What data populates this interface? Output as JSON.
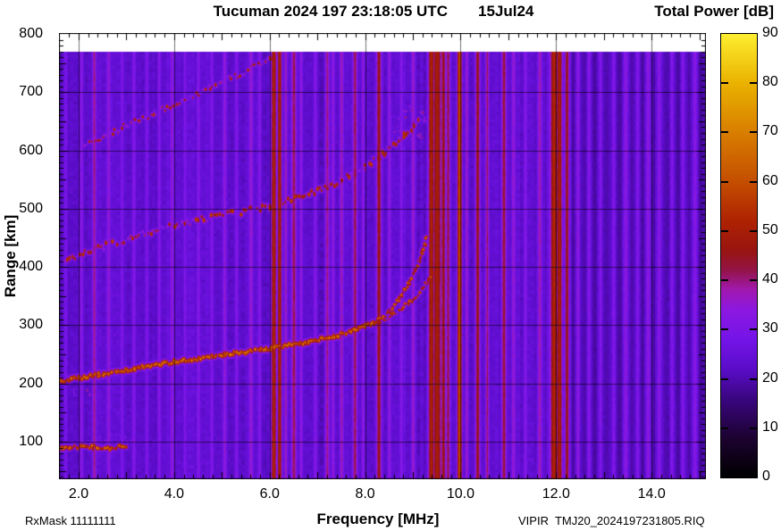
{
  "header": {
    "title": "Tucuman 2024 197 23:18:05 UTC",
    "date": "15Jul24",
    "colorbar_title": "Total Power [dB]"
  },
  "axes": {
    "x_label": "Frequency [MHz]",
    "y_label": "Range [km]",
    "x_tick_values": [
      2,
      4,
      6,
      8,
      10,
      12,
      14
    ],
    "x_tick_labels": [
      "2.0",
      "4.0",
      "6.0",
      "8.0",
      "10.0",
      "12.0",
      "14.0"
    ],
    "y_tick_values": [
      100,
      200,
      300,
      400,
      500,
      600,
      700,
      800
    ],
    "y_tick_labels": [
      "100",
      "200",
      "300",
      "400",
      "500",
      "600",
      "700",
      "800"
    ]
  },
  "colorbar": {
    "min": 0,
    "max": 90,
    "tick_values": [
      0,
      10,
      20,
      30,
      40,
      50,
      60,
      70,
      80,
      90
    ],
    "tick_labels": [
      "0",
      "10",
      "20",
      "30",
      "40",
      "50",
      "60",
      "70",
      "80",
      "90"
    ]
  },
  "footer": {
    "left": "RxMask 11111111",
    "right": "VIPIR  TMJ20_2024197231805.RIQ"
  },
  "chart_data": {
    "type": "heatmap",
    "title": "Tucuman 2024 197 23:18:05 UTC 15Jul24 - Total Power ionogram",
    "x_axis": {
      "label": "Frequency [MHz]",
      "min": 1.59,
      "max": 15.13
    },
    "y_axis": {
      "label": "Range [km]",
      "min": 37,
      "max": 800,
      "data_top": 770
    },
    "z_axis": {
      "label": "Total Power [dB]",
      "min": 0,
      "max": 90
    },
    "background_db": 23.3,
    "colormap_stops": [
      [
        0,
        "#000000"
      ],
      [
        8,
        "#1c0230"
      ],
      [
        16,
        "#3a0680"
      ],
      [
        22,
        "#5a0cc8"
      ],
      [
        28,
        "#7414e8"
      ],
      [
        34,
        "#8c18e0"
      ],
      [
        38,
        "#a018b0"
      ],
      [
        42,
        "#941448"
      ],
      [
        46,
        "#981410"
      ],
      [
        52,
        "#ae2202"
      ],
      [
        60,
        "#c44e00"
      ],
      [
        70,
        "#d87e00"
      ],
      [
        80,
        "#eab200"
      ],
      [
        90,
        "#fdee30"
      ]
    ],
    "layout": {
      "x_grid": [
        2,
        4,
        6,
        8,
        10,
        12,
        14
      ],
      "y_grid": [
        100,
        200,
        300,
        400,
        500,
        600,
        700
      ],
      "x_minor_step": 0.2,
      "y_minor_step": 10,
      "grid_on": true
    },
    "traces": [
      {
        "name": "E-layer-echo",
        "peak_db": 63,
        "width_km": 9,
        "speckle": 0.35,
        "points": [
          [
            1.6,
            89
          ],
          [
            2.1,
            92
          ],
          [
            2.6,
            90
          ],
          [
            3.0,
            94
          ]
        ]
      },
      {
        "name": "E-layer-spread",
        "type": "cloud",
        "db": 36,
        "region": [
          1.6,
          4.4,
          92,
          116
        ]
      },
      {
        "name": "blob-185km",
        "type": "cloud",
        "db": 52,
        "region": [
          1.75,
          2.35,
          176,
          194
        ]
      },
      {
        "name": "low-band-faint",
        "type": "cloud",
        "db": 29,
        "region": [
          1.6,
          4.2,
          130,
          170
        ]
      },
      {
        "name": "F-trace-main",
        "peak_db": 66,
        "width_km": 10,
        "speckle": 0.25,
        "points": [
          [
            1.6,
            205
          ],
          [
            2.2,
            213
          ],
          [
            3.0,
            224
          ],
          [
            4.0,
            238
          ],
          [
            5.0,
            250
          ],
          [
            6.0,
            261
          ],
          [
            6.8,
            272
          ],
          [
            7.4,
            283
          ],
          [
            7.9,
            296
          ],
          [
            8.2,
            305
          ]
        ]
      },
      {
        "name": "F-trace-O-branch",
        "peak_db": 58,
        "width_km": 7,
        "speckle": 0.5,
        "points": [
          [
            8.2,
            305
          ],
          [
            8.5,
            325
          ],
          [
            8.75,
            350
          ],
          [
            8.95,
            378
          ],
          [
            9.1,
            405
          ],
          [
            9.2,
            428
          ],
          [
            9.28,
            450
          ]
        ]
      },
      {
        "name": "F-trace-X-branch",
        "peak_db": 56,
        "width_km": 7,
        "speckle": 0.5,
        "points": [
          [
            8.2,
            305
          ],
          [
            8.6,
            320
          ],
          [
            8.9,
            338
          ],
          [
            9.15,
            358
          ],
          [
            9.3,
            375
          ],
          [
            9.42,
            394
          ]
        ]
      },
      {
        "name": "second-hop-trace",
        "peak_db": 47,
        "width_km": 11,
        "speckle": 0.8,
        "points": [
          [
            1.7,
            410
          ],
          [
            2.5,
            436
          ],
          [
            3.5,
            462
          ],
          [
            4.5,
            481
          ],
          [
            5.5,
            497
          ],
          [
            6.0,
            506
          ],
          [
            6.5,
            517
          ],
          [
            7.0,
            532
          ],
          [
            7.5,
            550
          ],
          [
            8.0,
            572
          ],
          [
            8.4,
            596
          ],
          [
            8.8,
            625
          ],
          [
            9.1,
            652
          ]
        ]
      },
      {
        "name": "second-hop-spread",
        "type": "cloud",
        "db": 44,
        "region": [
          8.3,
          9.6,
          588,
          702
        ]
      },
      {
        "name": "third-hop-trace",
        "peak_db": 45,
        "width_km": 9,
        "speckle": 0.8,
        "points": [
          [
            2.1,
            610
          ],
          [
            2.8,
            636
          ],
          [
            3.6,
            665
          ],
          [
            4.4,
            696
          ],
          [
            5.2,
            726
          ],
          [
            6.0,
            758
          ],
          [
            6.25,
            768
          ]
        ]
      }
    ],
    "rfi_stripes": [
      {
        "f": 1.72,
        "w": 0.03,
        "db": 30
      },
      {
        "f": 2.05,
        "w": 0.03,
        "db": 34
      },
      {
        "f": 2.32,
        "w": 0.035,
        "db": 40
      },
      {
        "f": 2.62,
        "w": 0.03,
        "db": 36
      },
      {
        "f": 2.9,
        "w": 0.03,
        "db": 31
      },
      {
        "f": 3.15,
        "w": 0.03,
        "db": 33
      },
      {
        "f": 3.42,
        "w": 0.03,
        "db": 31
      },
      {
        "f": 3.68,
        "w": 0.03,
        "db": 33
      },
      {
        "f": 3.95,
        "w": 0.035,
        "db": 35
      },
      {
        "f": 4.22,
        "w": 0.03,
        "db": 31
      },
      {
        "f": 4.5,
        "w": 0.03,
        "db": 33
      },
      {
        "f": 4.78,
        "w": 0.03,
        "db": 32
      },
      {
        "f": 5.05,
        "w": 0.035,
        "db": 35
      },
      {
        "f": 5.3,
        "w": 0.03,
        "db": 32
      },
      {
        "f": 5.6,
        "w": 0.04,
        "db": 36
      },
      {
        "f": 5.78,
        "w": 0.03,
        "db": 33
      },
      {
        "f": 6.08,
        "w": 0.05,
        "db": 52
      },
      {
        "f": 6.2,
        "w": 0.045,
        "db": 51
      },
      {
        "f": 6.33,
        "w": 0.03,
        "db": 38
      },
      {
        "f": 6.5,
        "w": 0.05,
        "db": 42
      },
      {
        "f": 6.65,
        "w": 0.03,
        "db": 35
      },
      {
        "f": 6.95,
        "w": 0.03,
        "db": 33
      },
      {
        "f": 7.2,
        "w": 0.04,
        "db": 40
      },
      {
        "f": 7.32,
        "w": 0.03,
        "db": 35
      },
      {
        "f": 7.5,
        "w": 0.035,
        "db": 38
      },
      {
        "f": 7.78,
        "w": 0.045,
        "db": 42
      },
      {
        "f": 7.95,
        "w": 0.03,
        "db": 34
      },
      {
        "f": 8.28,
        "w": 0.05,
        "db": 46
      },
      {
        "f": 8.5,
        "w": 0.03,
        "db": 35
      },
      {
        "f": 8.75,
        "w": 0.03,
        "db": 33
      },
      {
        "f": 9.0,
        "w": 0.035,
        "db": 37
      },
      {
        "f": 9.38,
        "w": 0.06,
        "db": 52
      },
      {
        "f": 9.5,
        "w": 0.09,
        "db": 50
      },
      {
        "f": 9.63,
        "w": 0.05,
        "db": 46
      },
      {
        "f": 9.73,
        "w": 0.04,
        "db": 43
      },
      {
        "f": 9.97,
        "w": 0.045,
        "db": 60
      },
      {
        "f": 10.12,
        "w": 0.03,
        "db": 37
      },
      {
        "f": 10.35,
        "w": 0.045,
        "db": 46
      },
      {
        "f": 10.55,
        "w": 0.035,
        "db": 41
      },
      {
        "f": 10.9,
        "w": 0.045,
        "db": 44
      },
      {
        "f": 11.1,
        "w": 0.035,
        "db": 36
      },
      {
        "f": 11.35,
        "w": 0.03,
        "db": 33
      },
      {
        "f": 11.65,
        "w": 0.04,
        "db": 38
      },
      {
        "f": 11.95,
        "w": 0.08,
        "db": 52
      },
      {
        "f": 12.06,
        "w": 0.06,
        "db": 51
      },
      {
        "f": 12.22,
        "w": 0.045,
        "db": 46
      },
      {
        "f": 12.45,
        "w": 0.03,
        "db": 35
      },
      {
        "f": 12.68,
        "w": 0.03,
        "db": 33
      },
      {
        "f": 12.92,
        "w": 0.03,
        "db": 32
      },
      {
        "f": 13.2,
        "w": 0.03,
        "db": 32
      },
      {
        "f": 13.45,
        "w": 0.04,
        "db": 34
      },
      {
        "f": 13.7,
        "w": 0.03,
        "db": 32
      },
      {
        "f": 13.92,
        "w": 0.04,
        "db": 34
      },
      {
        "f": 14.15,
        "w": 0.04,
        "db": 33
      },
      {
        "f": 14.42,
        "w": 0.03,
        "db": 32
      },
      {
        "f": 14.65,
        "w": 0.03,
        "db": 32
      },
      {
        "f": 14.9,
        "w": 0.04,
        "db": 33
      }
    ],
    "rfi_dark_columns": [
      {
        "f": 12.35,
        "w": 0.07,
        "db": 19
      },
      {
        "f": 12.58,
        "w": 0.06,
        "db": 20
      },
      {
        "f": 12.8,
        "w": 0.07,
        "db": 19
      },
      {
        "f": 13.05,
        "w": 0.06,
        "db": 20
      },
      {
        "f": 13.32,
        "w": 0.07,
        "db": 19
      },
      {
        "f": 13.58,
        "w": 0.06,
        "db": 20
      },
      {
        "f": 13.8,
        "w": 0.06,
        "db": 19
      },
      {
        "f": 14.05,
        "w": 0.07,
        "db": 19
      },
      {
        "f": 14.3,
        "w": 0.06,
        "db": 20
      },
      {
        "f": 14.55,
        "w": 0.07,
        "db": 19
      },
      {
        "f": 14.78,
        "w": 0.05,
        "db": 20
      },
      {
        "f": 15.02,
        "w": 0.08,
        "db": 18
      }
    ]
  }
}
